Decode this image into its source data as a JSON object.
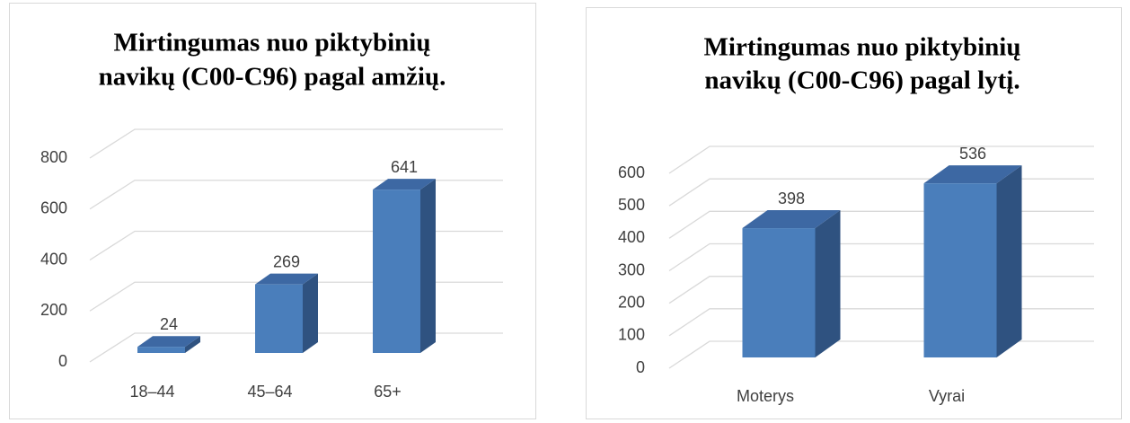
{
  "chart_data": [
    {
      "type": "bar",
      "title": [
        "Mirtingumas nuo piktybinių",
        "navikų (C00-C96) pagal amžių."
      ],
      "categories": [
        "18–44",
        "45–64",
        "65+"
      ],
      "values": [
        24,
        269,
        641
      ],
      "color": "#4a7ebb",
      "ylim": [
        0,
        800
      ],
      "yticks": [
        0,
        200,
        400,
        600,
        800
      ],
      "grid": true
    },
    {
      "type": "bar",
      "title": [
        "Mirtingumas nuo piktybinių",
        "navikų (C00-C96) pagal lytį."
      ],
      "categories": [
        "Moterys",
        "Vyrai"
      ],
      "values": [
        398,
        536
      ],
      "color": "#4a7ebb",
      "ylim": [
        0,
        600
      ],
      "yticks": [
        0,
        100,
        200,
        300,
        400,
        500,
        600
      ],
      "grid": true
    }
  ]
}
